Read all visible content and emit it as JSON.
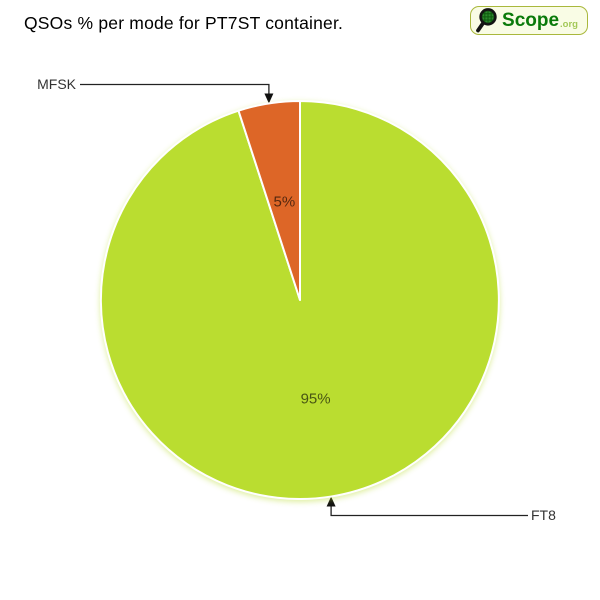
{
  "header": {
    "title": "QSOs % per mode for PT7ST container.",
    "logo": {
      "name": "Scope",
      "suffix": ".org",
      "icon": "magnifier-globe-icon"
    }
  },
  "chart_data": {
    "type": "pie",
    "title": "QSOs % per mode for PT7ST container.",
    "unit": "%",
    "slices": [
      {
        "label": "FT8",
        "value": 95,
        "data_label": "95%",
        "color": "#badd30",
        "callout_side": "right",
        "callout_vertical": "below"
      },
      {
        "label": "MFSK",
        "value": 5,
        "data_label": "5%",
        "color": "#dd6627",
        "callout_side": "left",
        "callout_vertical": "above"
      }
    ],
    "start_angle_deg": 0,
    "direction": "clockwise",
    "separator_color": "#ffffff",
    "data_label_color": "rgba(0,0,0,0.62)",
    "callout_line_color": "#222222",
    "callout_text_color": "#333333",
    "legend": "none",
    "background": "#ffffff"
  }
}
